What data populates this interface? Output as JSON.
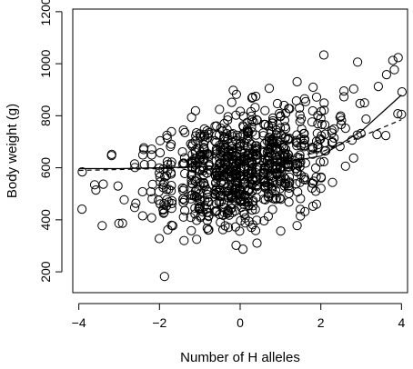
{
  "chart_data": {
    "type": "scatter",
    "title": "",
    "xlabel": "Number of H alleles",
    "ylabel": "Body weight (g)",
    "xlim": [
      -4.15,
      4.15
    ],
    "ylim": [
      120,
      1210
    ],
    "xticks": [
      -4,
      -2,
      0,
      2,
      4
    ],
    "xtick_labels": [
      "−4",
      "−2",
      "0",
      "2",
      "4"
    ],
    "yticks": [
      200,
      400,
      600,
      800,
      1000,
      1200
    ],
    "ytick_labels": [
      "200",
      "400",
      "600",
      "800",
      "1000",
      "1200"
    ],
    "marker": "open-circle",
    "point_count_estimate": 900,
    "x_value_columns_approx": [
      -3.9,
      -3.6,
      -3.4,
      -3.2,
      -3.0,
      -2.9,
      -2.6,
      -2.4,
      -2.2,
      -2.0,
      -1.9,
      -1.8,
      -1.7,
      -1.4,
      -1.2,
      -1.1,
      -1.0,
      -0.9,
      -0.8,
      -0.6,
      -0.5,
      -0.4,
      -0.3,
      -0.2,
      -0.1,
      0.0,
      0.1,
      0.2,
      0.3,
      0.4,
      0.6,
      0.7,
      0.8,
      0.9,
      1.0,
      1.1,
      1.2,
      1.4,
      1.5,
      1.6,
      1.8,
      1.9,
      2.0,
      2.1,
      2.3,
      2.5,
      2.6,
      2.8,
      2.9,
      3.0,
      3.1,
      3.4,
      3.6,
      3.8,
      3.9,
      4.0
    ],
    "fit_lines": [
      {
        "style": "solid",
        "points": [
          [
            -4,
            597
          ],
          [
            -3,
            597
          ],
          [
            -2,
            600
          ],
          [
            -1,
            604
          ],
          [
            0,
            610
          ],
          [
            1,
            618
          ],
          [
            2,
            645
          ],
          [
            3,
            740
          ],
          [
            3.5,
            810
          ],
          [
            4,
            880
          ]
        ]
      },
      {
        "style": "dashed",
        "points": [
          [
            -4,
            590
          ],
          [
            -2,
            597
          ],
          [
            0,
            610
          ],
          [
            2,
            660
          ],
          [
            3,
            720
          ],
          [
            4,
            785
          ]
        ]
      }
    ],
    "grid": false,
    "legend": "none"
  }
}
